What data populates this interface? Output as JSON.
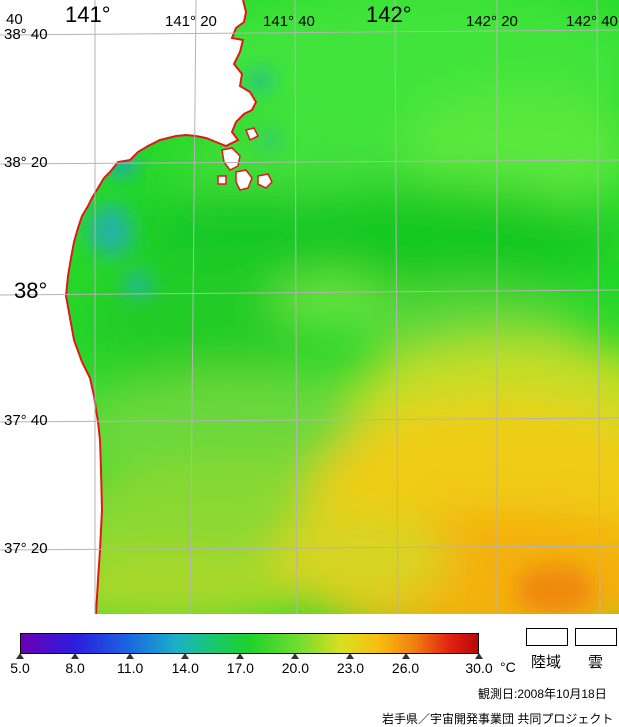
{
  "map": {
    "lon_labels": [
      "141°",
      "141° 20",
      "141° 40",
      "142°",
      "142° 20",
      "142° 40"
    ],
    "lon_label_left_prefix": "40",
    "lat_labels": [
      "38° 40",
      "38° 20",
      "38°",
      "37° 40",
      "37° 20"
    ],
    "colors": {
      "land": "#ffffff",
      "coast": "#e01818",
      "grid": "#b4b4b4"
    }
  },
  "legend": {
    "colorbar": {
      "min": 5.0,
      "max": 30.0,
      "ticks": [
        "5.0",
        "8.0",
        "11.0",
        "14.0",
        "17.0",
        "20.0",
        "23.0",
        "26.0",
        "30.0"
      ],
      "unit": "°C"
    },
    "land_label": "陸域",
    "cloud_label": "雲",
    "observation_date": "観測日:2008年10月18日",
    "credit": "岩手県／宇宙開発事業団 共同プロジェクト"
  }
}
